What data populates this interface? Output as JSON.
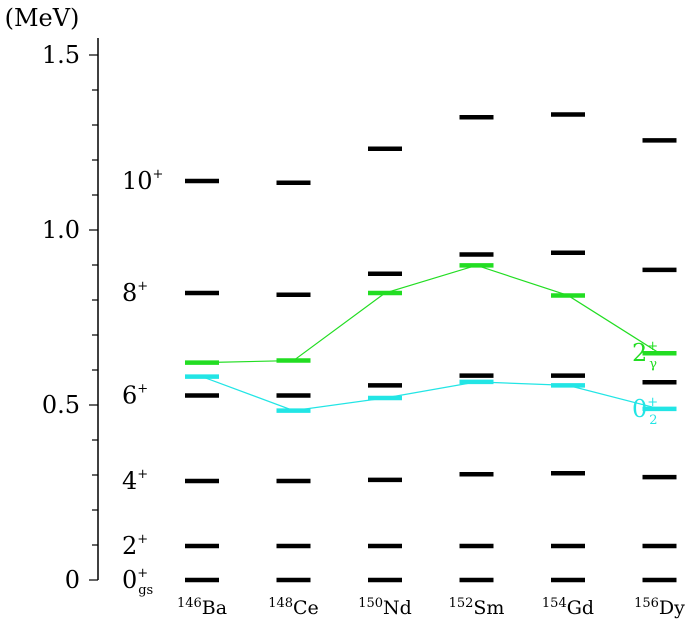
{
  "chart_data": {
    "type": "scatter",
    "title": "",
    "ylabel": "(MeV)",
    "ylim": [
      0,
      1.5
    ],
    "yticks": [
      {
        "value": 0,
        "label": "0"
      },
      {
        "value": 0.5,
        "label": "0.5"
      },
      {
        "value": 1.0,
        "label": "1.0"
      },
      {
        "value": 1.5,
        "label": "1.5"
      }
    ],
    "yminor_step": 0.1,
    "nuclei": [
      {
        "mass": "146",
        "symbol": "Ba"
      },
      {
        "mass": "148",
        "symbol": "Ce"
      },
      {
        "mass": "150",
        "symbol": "Nd"
      },
      {
        "mass": "152",
        "symbol": "Sm"
      },
      {
        "mass": "154",
        "symbol": "Gd"
      },
      {
        "mass": "156",
        "symbol": "Dy"
      }
    ],
    "ground_band": [
      {
        "spin": "0",
        "parity": "+",
        "sub": "gs",
        "values": [
          0,
          0,
          0,
          0,
          0,
          0
        ]
      },
      {
        "spin": "2",
        "parity": "+",
        "sub": "",
        "values": [
          0.097,
          0.097,
          0.097,
          0.097,
          0.097,
          0.097
        ]
      },
      {
        "spin": "4",
        "parity": "+",
        "sub": "",
        "values": [
          0.283,
          0.283,
          0.286,
          0.302,
          0.305,
          0.294
        ]
      },
      {
        "spin": "6",
        "parity": "+",
        "sub": "",
        "values": [
          0.527,
          0.527,
          0.556,
          0.584,
          0.584,
          0.565
        ]
      },
      {
        "spin": "8",
        "parity": "+",
        "sub": "",
        "values": [
          0.82,
          0.815,
          0.875,
          0.93,
          0.935,
          0.886
        ]
      },
      {
        "spin": "10",
        "parity": "+",
        "sub": "",
        "values": [
          1.14,
          1.135,
          1.232,
          1.322,
          1.33,
          1.256
        ]
      }
    ],
    "series": [
      {
        "name": "2",
        "sup": "+",
        "sub": "γ",
        "color": "#22dd22",
        "values": [
          0.621,
          0.627,
          0.82,
          0.899,
          0.813,
          0.648
        ]
      },
      {
        "name": "0",
        "sup": "+",
        "sub": "2",
        "color": "#22e5e5",
        "values": [
          0.581,
          0.484,
          0.52,
          0.566,
          0.556,
          0.489
        ]
      }
    ]
  }
}
